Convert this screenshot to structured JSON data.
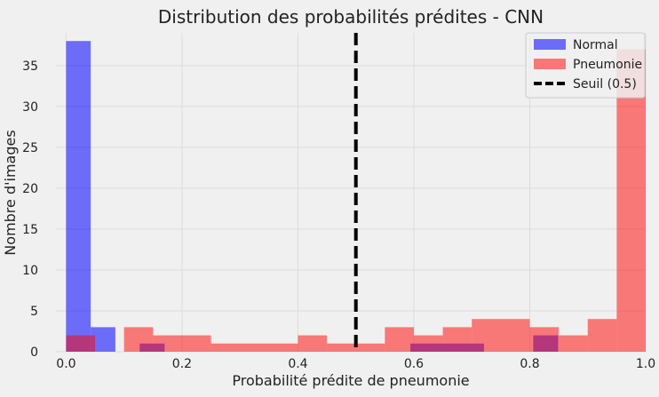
{
  "chart_data": {
    "type": "bar",
    "title": "Distribution des probabilités prédites - CNN",
    "xlabel": "Probabilité prédite de pneumonie",
    "ylabel": "Nombre d'images",
    "xlim": [
      -0.0175,
      1.0
    ],
    "ylim": [
      0,
      39
    ],
    "xticks": [
      0.0,
      0.2,
      0.4,
      0.6,
      0.8,
      1.0
    ],
    "xtick_labels": [
      "0.0",
      "0.2",
      "0.4",
      "0.6",
      "0.8",
      "1.0"
    ],
    "yticks": [
      0,
      5,
      10,
      15,
      20,
      25,
      30,
      35
    ],
    "ytick_labels": [
      "0",
      "5",
      "10",
      "15",
      "20",
      "25",
      "30",
      "35"
    ],
    "grid": true,
    "legend_position": "top-right",
    "threshold": {
      "x": 0.5,
      "label": "Seuil (0.5)",
      "color": "#000000"
    },
    "series": [
      {
        "name": "Normal",
        "color": "#0000ff",
        "opacity": 0.55,
        "bins": [
          {
            "x0": 0.0,
            "x1": 0.0425,
            "count": 38
          },
          {
            "x0": 0.0425,
            "x1": 0.085,
            "count": 3
          },
          {
            "x0": 0.127,
            "x1": 0.17,
            "count": 1
          },
          {
            "x0": 0.594,
            "x1": 0.636,
            "count": 1
          },
          {
            "x0": 0.636,
            "x1": 0.679,
            "count": 1
          },
          {
            "x0": 0.679,
            "x1": 0.721,
            "count": 1
          },
          {
            "x0": 0.806,
            "x1": 0.849,
            "count": 2
          }
        ]
      },
      {
        "name": "Pneumonie",
        "color": "#ff0000",
        "opacity": 0.5,
        "bins": [
          {
            "x0": 0.0,
            "x1": 0.05,
            "count": 2
          },
          {
            "x0": 0.1,
            "x1": 0.15,
            "count": 3
          },
          {
            "x0": 0.15,
            "x1": 0.25,
            "count": 2
          },
          {
            "x0": 0.25,
            "x1": 0.4,
            "count": 1
          },
          {
            "x0": 0.4,
            "x1": 0.45,
            "count": 2
          },
          {
            "x0": 0.45,
            "x1": 0.55,
            "count": 1
          },
          {
            "x0": 0.55,
            "x1": 0.6,
            "count": 3
          },
          {
            "x0": 0.6,
            "x1": 0.65,
            "count": 2
          },
          {
            "x0": 0.65,
            "x1": 0.7,
            "count": 3
          },
          {
            "x0": 0.7,
            "x1": 0.8,
            "count": 4
          },
          {
            "x0": 0.8,
            "x1": 0.85,
            "count": 3
          },
          {
            "x0": 0.85,
            "x1": 0.9,
            "count": 2
          },
          {
            "x0": 0.9,
            "x1": 0.95,
            "count": 4
          },
          {
            "x0": 0.95,
            "x1": 1.0,
            "count": 37
          }
        ]
      }
    ]
  }
}
